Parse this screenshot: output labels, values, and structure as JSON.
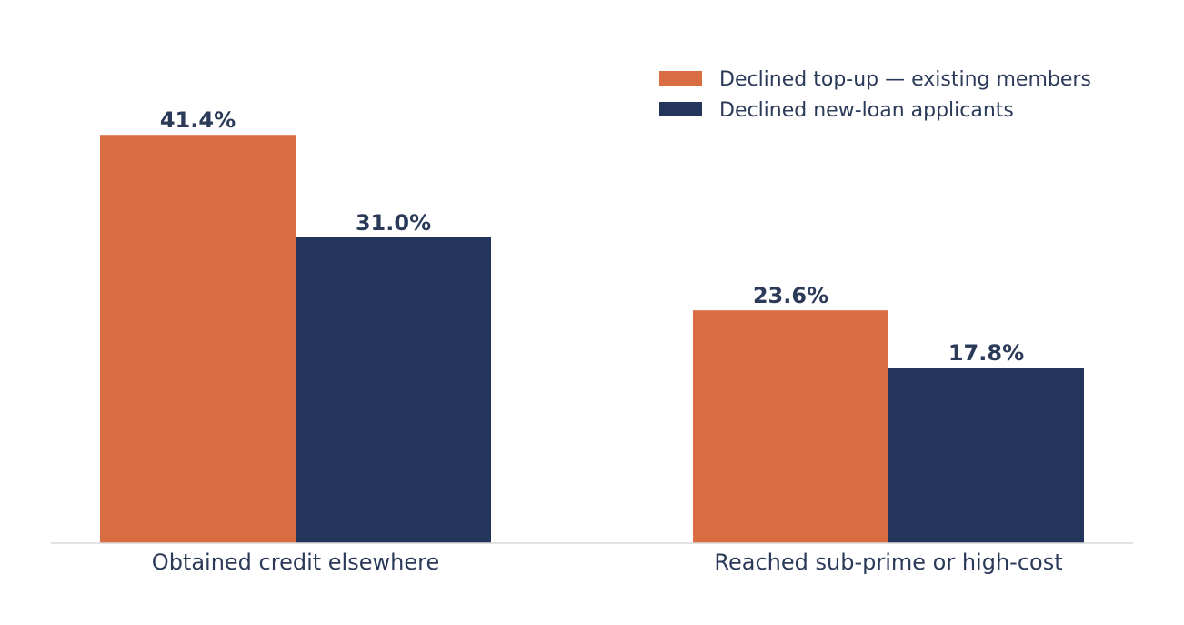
{
  "chart_data": {
    "type": "bar",
    "categories": [
      "Obtained credit elsewhere",
      "Reached sub-prime or high-cost"
    ],
    "series": [
      {
        "name": "Declined top-up — existing members",
        "values": [
          41.4,
          23.6
        ],
        "labels": [
          "41.4%",
          "23.6%"
        ],
        "color": "#d96c41"
      },
      {
        "name": "Declined new-loan applicants",
        "values": [
          31.0,
          17.8
        ],
        "labels": [
          "31.0%",
          "17.8%"
        ],
        "color": "#23355a"
      }
    ],
    "ylim": [
      0,
      50
    ],
    "grid": false,
    "legend": "top-right",
    "text_color": "#2b3a58",
    "axis_color": "#d9d9d9"
  }
}
